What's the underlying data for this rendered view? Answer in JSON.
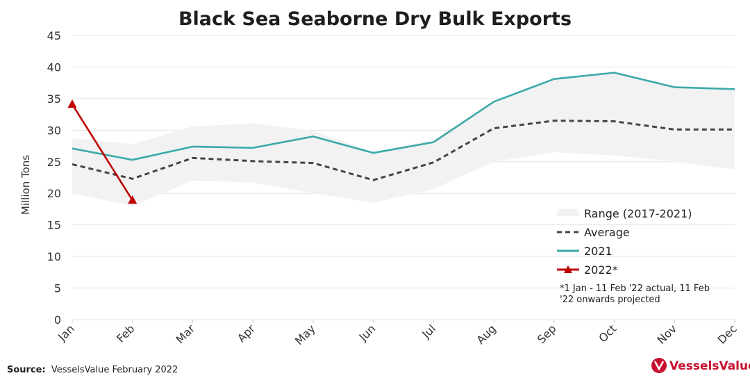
{
  "chart_data": {
    "type": "line",
    "title": "Black Sea Seaborne Dry Bulk Exports",
    "ylabel": "Million Tons",
    "xlabel": "",
    "categories": [
      "Jan",
      "Feb",
      "Mar",
      "Apr",
      "May",
      "Jun",
      "Jul",
      "Aug",
      "Sep",
      "Oct",
      "Nov",
      "Dec"
    ],
    "ylim": [
      0,
      45
    ],
    "yticks": [
      0,
      5,
      10,
      15,
      20,
      25,
      30,
      35,
      40,
      45
    ],
    "grid": true,
    "legend_position": "bottom-right",
    "range": {
      "name": "Range (2017-2021)",
      "low": [
        20.0,
        18.0,
        22.0,
        21.7,
        20.0,
        18.5,
        20.7,
        25.0,
        26.5,
        26.0,
        25.0,
        23.8
      ],
      "high": [
        28.7,
        27.8,
        30.6,
        31.1,
        29.9,
        26.5,
        28.5,
        34.5,
        38.2,
        39.1,
        36.8,
        36.5
      ]
    },
    "series": [
      {
        "name": "Average",
        "style": "dashed",
        "color": "#444444",
        "values": [
          24.6,
          22.3,
          25.6,
          25.1,
          24.8,
          22.1,
          24.9,
          30.3,
          31.5,
          31.4,
          30.1,
          30.1
        ]
      },
      {
        "name": "2021",
        "style": "solid",
        "color": "#3aa9a9",
        "values": [
          27.1,
          25.3,
          27.4,
          27.2,
          29.0,
          26.4,
          28.1,
          34.5,
          38.1,
          39.1,
          36.8,
          36.5
        ]
      },
      {
        "name": "2022*",
        "style": "solid-triangle",
        "color": "#c00000",
        "values": [
          34.1,
          18.9,
          null,
          null,
          null,
          null,
          null,
          null,
          null,
          null,
          null,
          null
        ]
      }
    ],
    "annotation": "*1 Jan - 11 Feb '22 actual, 11 Feb '22 onwards projected",
    "source_label": "Source:",
    "source_text": "VesselsValue February 2022"
  },
  "brand": {
    "name": "VesselsValue",
    "color": "#c8102e"
  },
  "colors": {
    "range_fill": "#f2f2f2",
    "grid": "#e3e3e3"
  }
}
